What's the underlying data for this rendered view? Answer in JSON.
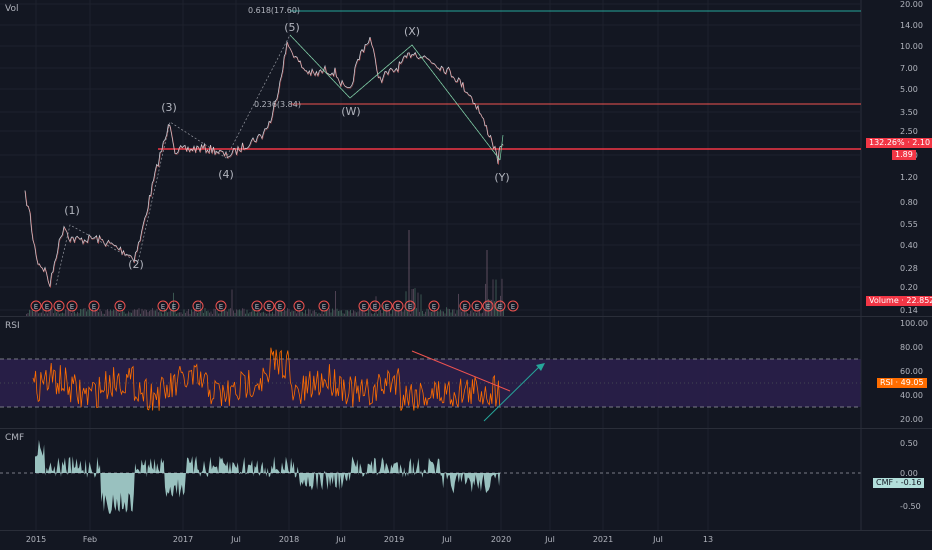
{
  "price_pane": {
    "label": "Vol",
    "price_ticks": [
      "20.00",
      "14.00",
      "10.00",
      "7.00",
      "5.00",
      "3.50",
      "2.50",
      "1.80",
      "1.20",
      "0.80",
      "0.55",
      "0.40",
      "0.28",
      "0.20",
      "0.14"
    ],
    "fib_upper_label": "0.618(17.60)",
    "fib_lower_label": "0.236(3.84)",
    "price_tag_pct": "132.26%",
    "price_tag_value": "2.10",
    "price_tag_low": "1.89",
    "volume_tag_label": "Volume",
    "volume_tag_value": "22.852M",
    "wave_labels": {
      "w1": "(1)",
      "w2": "(2)",
      "w3": "(3)",
      "w4": "(4)",
      "w5": "(5)",
      "wW": "(W)",
      "wX": "(X)",
      "wY": "(Y)"
    },
    "earnings_marker": "E",
    "colors": {
      "wave_orange": "#f5a623",
      "wave_green": "#7ed3a7",
      "fib_green": "#26a69a",
      "fib_red": "#ef5350",
      "support_red": "#f23645"
    }
  },
  "rsi_pane": {
    "label": "RSI",
    "ticks": [
      "100.00",
      "80.00",
      "60.00",
      "40.00",
      "20.00"
    ],
    "tag_label": "RSI",
    "tag_value": "49.05",
    "colors": {
      "line": "#ff6d00",
      "band": "#2a1f4a"
    }
  },
  "cmf_pane": {
    "label": "CMF",
    "ticks": [
      "0.50",
      "0.00",
      "-0.50"
    ],
    "tag_label": "CMF",
    "tag_value": "-0.16",
    "colors": {
      "fill": "#b2dfdb"
    }
  },
  "time_axis": {
    "labels": [
      "2015",
      "Feb",
      "2017",
      "Jul",
      "2018",
      "Jul",
      "2019",
      "Jul",
      "2020",
      "Jul",
      "2021",
      "Jul",
      "13"
    ]
  }
}
